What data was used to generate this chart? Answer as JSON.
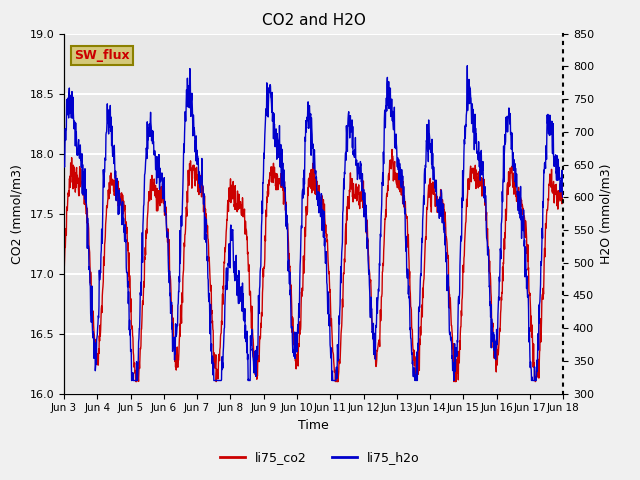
{
  "title": "CO2 and H2O",
  "xlabel": "Time",
  "ylabel_left": "CO2 (mmol/m3)",
  "ylabel_right": "H2O (mmol/m3)",
  "ylim_left": [
    16.0,
    19.0
  ],
  "ylim_right": [
    300,
    850
  ],
  "xtick_labels": [
    "Jun 3",
    "Jun 4",
    "Jun 5",
    "Jun 6",
    "Jun 7",
    "Jun 8",
    "Jun 9",
    "Jun 10",
    "Jun 11",
    "Jun 12",
    "Jun 13",
    "Jun 14",
    "Jun 15",
    "Jun 16",
    "Jun 17",
    "Jun 18"
  ],
  "co2_color": "#cc0000",
  "h2o_color": "#0000cc",
  "legend_labels": [
    "li75_co2",
    "li75_h2o"
  ],
  "annotation_text": "SW_flux",
  "annotation_bg": "#d4c87a",
  "annotation_border": "#8B8000",
  "plot_bg_color": "#e8e8e8",
  "fig_bg_color": "#f0f0f0",
  "grid_color": "#ffffff",
  "yticks_left": [
    16.0,
    16.5,
    17.0,
    17.5,
    18.0,
    18.5,
    19.0
  ],
  "yticks_right": [
    300,
    350,
    400,
    450,
    500,
    550,
    600,
    650,
    700,
    750,
    800,
    850
  ],
  "co2_lw": 1.0,
  "h2o_lw": 1.0
}
